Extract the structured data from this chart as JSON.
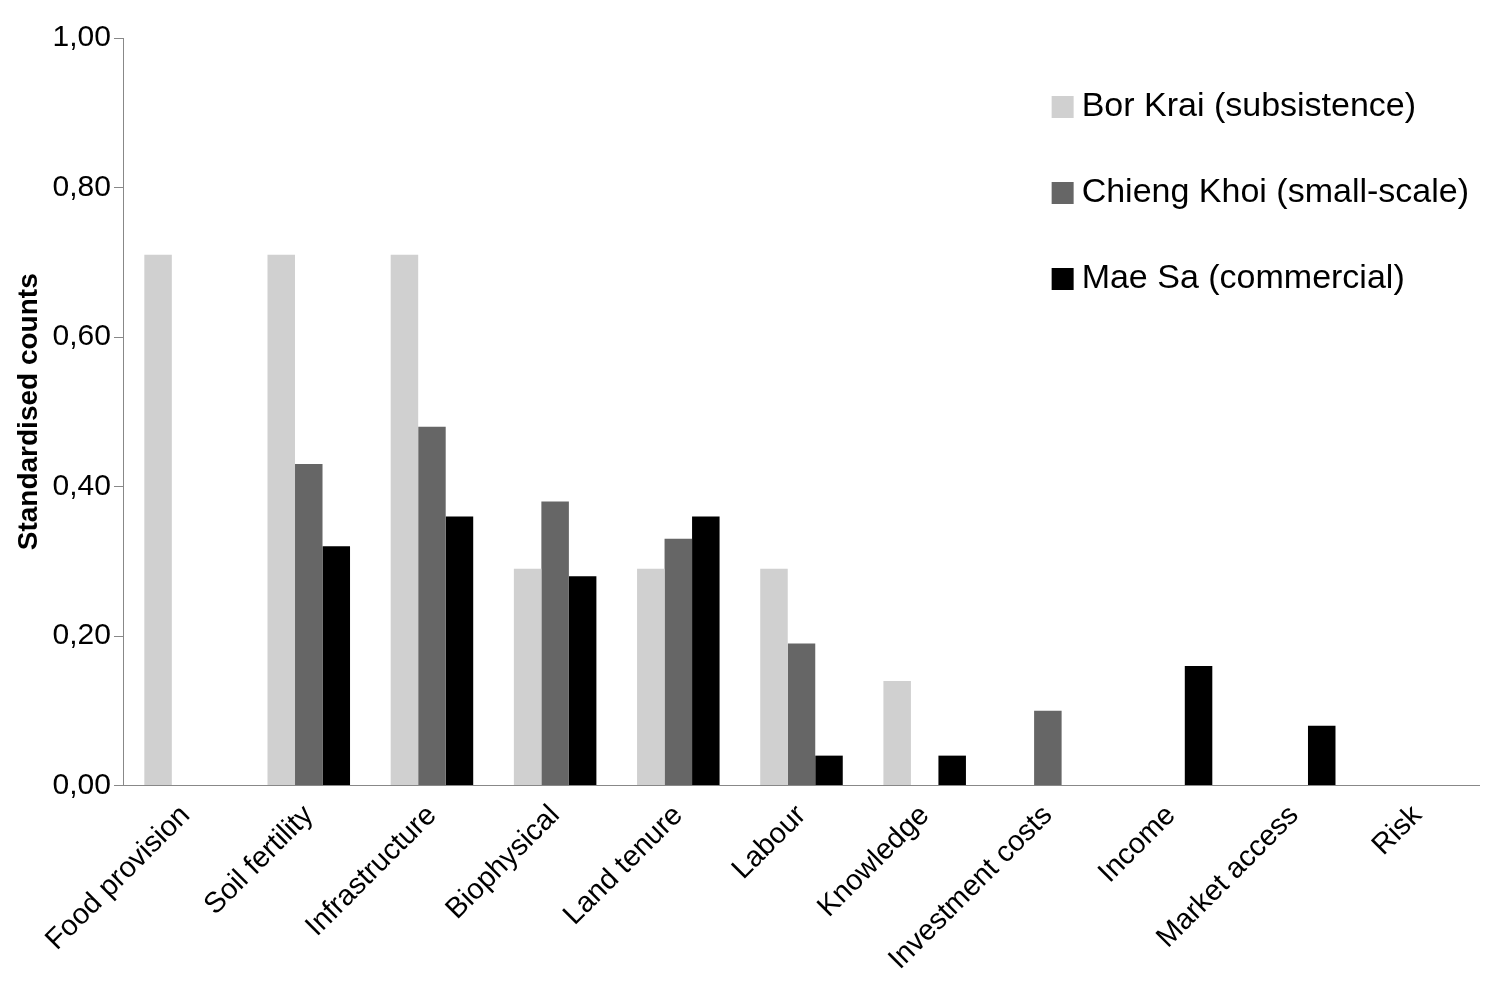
{
  "chart_data": {
    "type": "bar",
    "ylabel": "Standardised counts",
    "categories": [
      "Food provision",
      "Soil fertility",
      "Infrastructure",
      "Biophysical",
      "Land tenure",
      "Labour",
      "Knowledge",
      "Investment costs",
      "Income",
      "Market access",
      "Risk"
    ],
    "series": [
      {
        "name": "Bor Krai (subsistence)",
        "color": "#d0d0d0",
        "values": [
          0.71,
          0.71,
          0.71,
          0.29,
          0.29,
          0.29,
          0.14,
          0,
          0,
          0,
          0
        ]
      },
      {
        "name": "Chieng Khoi (small-scale)",
        "color": "#666666",
        "values": [
          0,
          0.43,
          0.48,
          0.38,
          0.33,
          0.19,
          0,
          0.1,
          0,
          0,
          0
        ]
      },
      {
        "name": "Mae Sa (commercial)",
        "color": "#000000",
        "values": [
          0,
          0.32,
          0.36,
          0.28,
          0.36,
          0.04,
          0.04,
          0,
          0.16,
          0.08,
          null
        ]
      }
    ],
    "ylim": [
      0,
      1
    ],
    "yticks": [
      {
        "value": 0,
        "label": "0,00"
      },
      {
        "value": 0.2,
        "label": "0,20"
      },
      {
        "value": 0.4,
        "label": "0,40"
      },
      {
        "value": 0.6,
        "label": "0,60"
      },
      {
        "value": 0.8,
        "label": "0,80"
      },
      {
        "value": 1,
        "label": "1,00"
      }
    ],
    "grid": false,
    "legend": "top right"
  }
}
